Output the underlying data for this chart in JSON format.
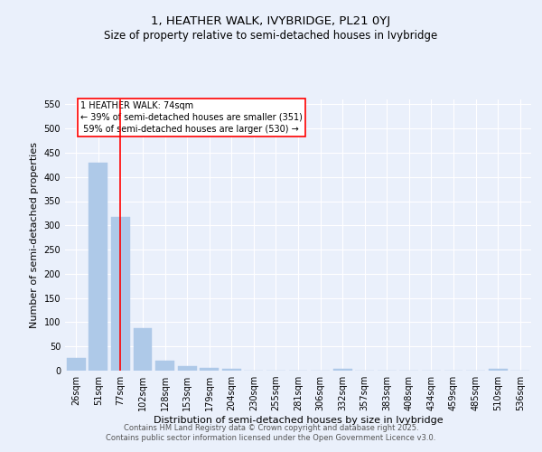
{
  "title1": "1, HEATHER WALK, IVYBRIDGE, PL21 0YJ",
  "title2": "Size of property relative to semi-detached houses in Ivybridge",
  "xlabel": "Distribution of semi-detached houses by size in Ivybridge",
  "ylabel": "Number of semi-detached properties",
  "categories": [
    "26sqm",
    "51sqm",
    "77sqm",
    "102sqm",
    "128sqm",
    "153sqm",
    "179sqm",
    "204sqm",
    "230sqm",
    "255sqm",
    "281sqm",
    "306sqm",
    "332sqm",
    "357sqm",
    "383sqm",
    "408sqm",
    "434sqm",
    "459sqm",
    "485sqm",
    "510sqm",
    "536sqm"
  ],
  "values": [
    27,
    430,
    318,
    87,
    20,
    10,
    6,
    4,
    0,
    0,
    0,
    0,
    3,
    0,
    0,
    0,
    0,
    0,
    0,
    3,
    0
  ],
  "bar_color": "#aec9e8",
  "bar_edge_color": "#aec9e8",
  "vline_x": 2,
  "vline_color": "red",
  "property_label": "1 HEATHER WALK: 74sqm",
  "pct_smaller": 39,
  "count_smaller": 351,
  "pct_larger": 59,
  "count_larger": 530,
  "ylim": [
    0,
    560
  ],
  "yticks": [
    0,
    50,
    100,
    150,
    200,
    250,
    300,
    350,
    400,
    450,
    500,
    550
  ],
  "bg_color": "#eaf0fb",
  "plot_bg_color": "#eaf0fb",
  "footer_line1": "Contains HM Land Registry data © Crown copyright and database right 2025.",
  "footer_line2": "Contains public sector information licensed under the Open Government Licence v3.0.",
  "title_fontsize": 9.5,
  "subtitle_fontsize": 8.5,
  "tick_fontsize": 7,
  "ylabel_fontsize": 8,
  "xlabel_fontsize": 8,
  "annotation_fontsize": 7,
  "footer_fontsize": 6
}
